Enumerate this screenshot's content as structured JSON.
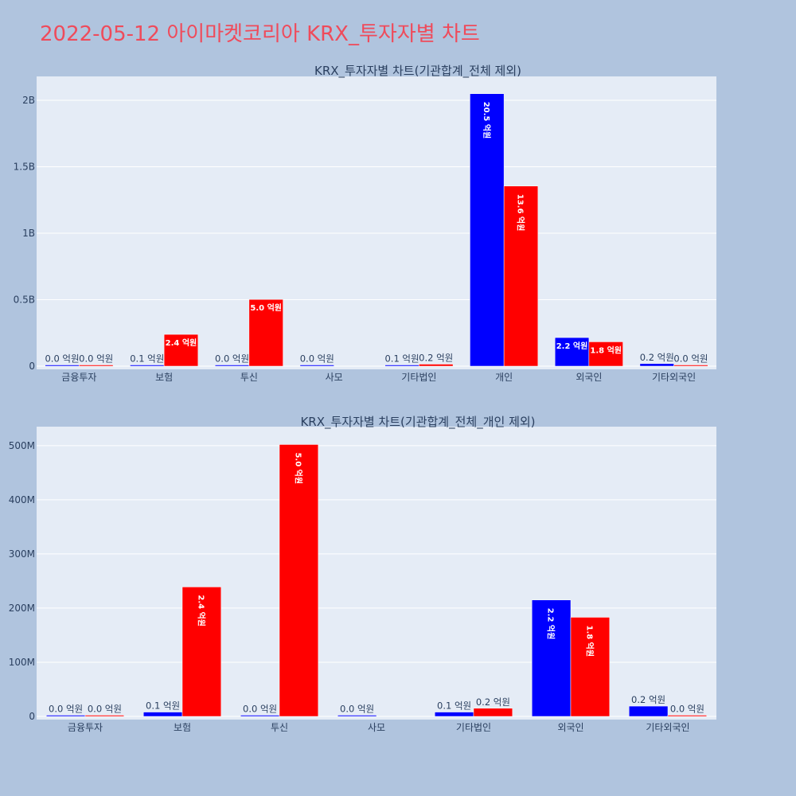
{
  "page": {
    "title": "2022-05-12 아이마켓코리아 KRX_투자자별 차트"
  },
  "colors": {
    "buy": "#0000ff",
    "sell": "#ff0000",
    "background": "#b0c4de",
    "plot_bg": "#e5ecf6",
    "title": "#ef4b5b"
  },
  "chart_data": [
    {
      "type": "bar",
      "title": "KRX_투자자별 차트(기관합계_전체 제외)",
      "categories": [
        "금융투자",
        "보험",
        "투신",
        "사모",
        "기타법인",
        "개인",
        "외국인",
        "기타외국인"
      ],
      "ylim": [
        0,
        2180000000
      ],
      "y_ticks": [
        0,
        500000000,
        1000000000,
        1500000000,
        2000000000
      ],
      "y_tick_labels": [
        "0",
        "0.5B",
        "1B",
        "1.5B",
        "2B"
      ],
      "grid": true,
      "series": [
        {
          "color": "#0000ff",
          "values": [
            0,
            8000000,
            2000000,
            1000000,
            8000000,
            2050000000,
            215000000,
            19000000
          ],
          "labels": [
            "0.0 억원",
            "0.1 억원",
            "0.0 억원",
            "0.0 억원",
            "0.1 억원",
            "20.5 억원",
            "2.2 억원",
            "0.2 억원"
          ]
        },
        {
          "color": "#ff0000",
          "values": [
            0,
            239000000,
            502000000,
            null,
            15000000,
            1355000000,
            183000000,
            2000000
          ],
          "labels": [
            "0.0 억원",
            "2.4 억원",
            "5.0 억원",
            "",
            "0.2 억원",
            "13.6 억원",
            "1.8 억원",
            "0.0 억원"
          ]
        }
      ]
    },
    {
      "type": "bar",
      "title": "KRX_투자자별 차트(기관합계_전체_개인 제외)",
      "categories": [
        "금융투자",
        "보험",
        "투신",
        "사모",
        "기타법인",
        "외국인",
        "기타외국인"
      ],
      "ylim": [
        0,
        535000000
      ],
      "y_ticks": [
        0,
        100000000,
        200000000,
        300000000,
        400000000,
        500000000
      ],
      "y_tick_labels": [
        "0",
        "100M",
        "200M",
        "300M",
        "400M",
        "500M"
      ],
      "grid": true,
      "series": [
        {
          "color": "#0000ff",
          "values": [
            0,
            8000000,
            2000000,
            1000000,
            8000000,
            215000000,
            19000000
          ],
          "labels": [
            "0.0 억원",
            "0.1 억원",
            "0.0 억원",
            "0.0 억원",
            "0.1 억원",
            "2.2 억원",
            "0.2 억원"
          ]
        },
        {
          "color": "#ff0000",
          "values": [
            0,
            239000000,
            502000000,
            null,
            15000000,
            183000000,
            2000000
          ],
          "labels": [
            "0.0 억원",
            "2.4 억원",
            "5.0 억원",
            "",
            "0.2 억원",
            "1.8 억원",
            "0.0 억원"
          ]
        }
      ]
    }
  ]
}
